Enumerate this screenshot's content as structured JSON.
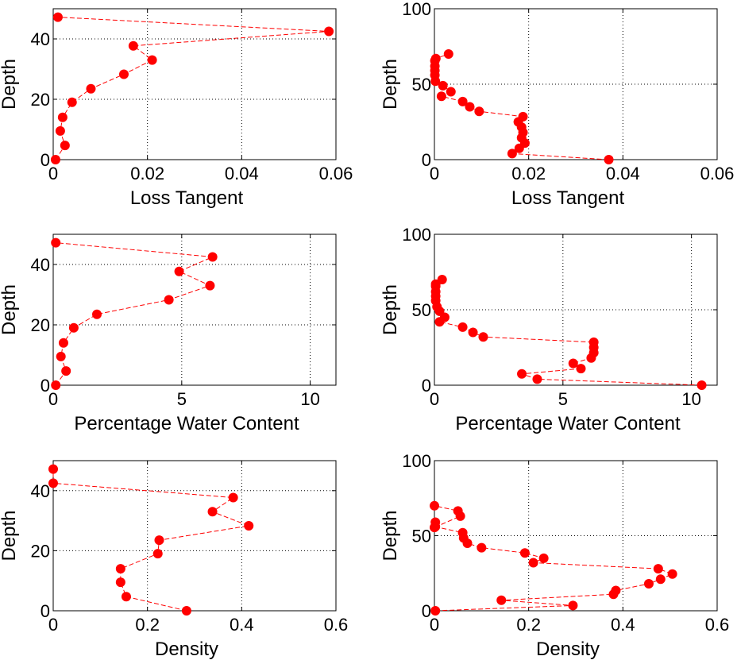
{
  "colors": {
    "series": "#ff0000",
    "axis": "#000000"
  },
  "chart_data": [
    {
      "type": "line",
      "panel": "left-1",
      "xlabel": "Loss Tangent",
      "ylabel": "Depth",
      "xlim": [
        0,
        0.06
      ],
      "ylim": [
        0,
        50
      ],
      "xticks": [
        "0",
        "0.02",
        "0.04",
        "0.06"
      ],
      "xtick_values": [
        0,
        0.02,
        0.04,
        0.06
      ],
      "yticks": [
        "0",
        "20",
        "40"
      ],
      "ytick_values": [
        0,
        20,
        40
      ],
      "grid": true,
      "series": [
        {
          "x": [
            0.0005,
            0.0025,
            0.0015,
            0.002,
            0.004,
            0.008,
            0.015,
            0.021,
            0.017,
            0.0585,
            0.001
          ],
          "y": [
            0,
            4.7,
            9.5,
            14,
            19,
            23.5,
            28.3,
            33,
            37.7,
            42.5,
            47.2
          ]
        }
      ]
    },
    {
      "type": "line",
      "panel": "right-1",
      "xlabel": "Loss Tangent",
      "ylabel": "Depth",
      "xlim": [
        0,
        0.06
      ],
      "ylim": [
        0,
        100
      ],
      "xticks": [
        "0",
        "0.02",
        "0.04",
        "0.06"
      ],
      "xtick_values": [
        0,
        0.02,
        0.04,
        0.06
      ],
      "yticks": [
        "0",
        "50",
        "100"
      ],
      "ytick_values": [
        0,
        50,
        100
      ],
      "grid": true,
      "series": [
        {
          "x": [
            0.037,
            0.0165,
            0.018,
            0.0192,
            0.0185,
            0.0188,
            0.0185,
            0.0178,
            0.0188,
            0.0095,
            0.0075,
            0.006,
            0.0015,
            0.0035,
            0.0018,
            0.0002,
            0.0001,
            0.0001,
            0.0001,
            0.0001,
            0.0003,
            0.003
          ],
          "y": [
            0,
            4,
            7.5,
            11,
            14.5,
            18,
            21.5,
            25,
            28.5,
            32,
            35,
            38.5,
            42,
            45,
            49,
            52,
            56,
            59,
            62,
            65.5,
            67,
            70
          ]
        }
      ]
    },
    {
      "type": "line",
      "panel": "left-2",
      "xlabel": "Percentage Water Content",
      "ylabel": "Depth",
      "xlim": [
        0,
        11
      ],
      "ylim": [
        0,
        50
      ],
      "xticks": [
        "0",
        "5",
        "10"
      ],
      "xtick_values": [
        0,
        5,
        10
      ],
      "yticks": [
        "0",
        "20",
        "40"
      ],
      "ytick_values": [
        0,
        20,
        40
      ],
      "grid": true,
      "series": [
        {
          "x": [
            0.1,
            0.5,
            0.3,
            0.4,
            0.8,
            1.7,
            4.5,
            6.1,
            4.9,
            6.2,
            0.1
          ],
          "y": [
            0,
            4.7,
            9.5,
            14,
            19,
            23.5,
            28.3,
            33,
            37.7,
            42.5,
            47.2
          ]
        }
      ]
    },
    {
      "type": "line",
      "panel": "right-2",
      "xlabel": "Percentage Water Content",
      "ylabel": "Depth",
      "xlim": [
        0,
        11
      ],
      "ylim": [
        0,
        100
      ],
      "xticks": [
        "0",
        "5",
        "10"
      ],
      "xtick_values": [
        0,
        5,
        10
      ],
      "yticks": [
        "0",
        "50",
        "100"
      ],
      "ytick_values": [
        0,
        50,
        100
      ],
      "grid": true,
      "series": [
        {
          "x": [
            10.4,
            4.0,
            3.4,
            5.7,
            5.4,
            6.1,
            6.2,
            6.2,
            6.2,
            1.9,
            1.5,
            1.1,
            0.2,
            0.4,
            0.2,
            0.1,
            0.05,
            0.05,
            0.05,
            0.05,
            0.05,
            0.3
          ],
          "y": [
            0,
            4,
            7.5,
            11,
            14.5,
            18,
            21.5,
            25,
            28.5,
            32,
            35,
            38.5,
            42,
            45,
            49,
            52,
            56,
            59,
            62,
            65.5,
            67,
            70
          ]
        }
      ]
    },
    {
      "type": "line",
      "panel": "left-3",
      "xlabel": "Density",
      "ylabel": "Depth",
      "xlim": [
        0,
        0.6
      ],
      "ylim": [
        0,
        50
      ],
      "xticks": [
        "0",
        "0.2",
        "0.4",
        "0.6"
      ],
      "xtick_values": [
        0,
        0.2,
        0.4,
        0.6
      ],
      "yticks": [
        "0",
        "20",
        "40"
      ],
      "ytick_values": [
        0,
        20,
        40
      ],
      "grid": true,
      "series": [
        {
          "x": [
            0.283,
            0.155,
            0.143,
            0.143,
            0.222,
            0.225,
            0.415,
            0.338,
            0.382,
            0.0,
            0.0
          ],
          "y": [
            0,
            4.7,
            9.5,
            14,
            19,
            23.5,
            28.3,
            33,
            37.7,
            42.5,
            47.2
          ]
        }
      ]
    },
    {
      "type": "line",
      "panel": "right-3",
      "xlabel": "Density",
      "ylabel": "Depth",
      "xlim": [
        0,
        0.6
      ],
      "ylim": [
        0,
        100
      ],
      "xticks": [
        "0",
        "0.2",
        "0.4",
        "0.6"
      ],
      "xtick_values": [
        0,
        0.2,
        0.4,
        0.6
      ],
      "yticks": [
        "0",
        "50",
        "100"
      ],
      "ytick_values": [
        0,
        50,
        100
      ],
      "grid": true,
      "series": [
        {
          "x": [
            0.002,
            0.294,
            0.142,
            0.38,
            0.385,
            0.455,
            0.48,
            0.505,
            0.475,
            0.21,
            0.232,
            0.192,
            0.1,
            0.07,
            0.062,
            0.06,
            0.002,
            0.002,
            0.0,
            0.055,
            0.05,
            0.0
          ],
          "y": [
            0,
            3.5,
            7,
            11,
            13.5,
            18,
            21,
            24.5,
            28,
            32,
            35,
            38.5,
            42,
            45,
            48.5,
            52,
            56,
            59,
            55.5,
            63,
            66.5,
            70
          ]
        }
      ]
    }
  ]
}
